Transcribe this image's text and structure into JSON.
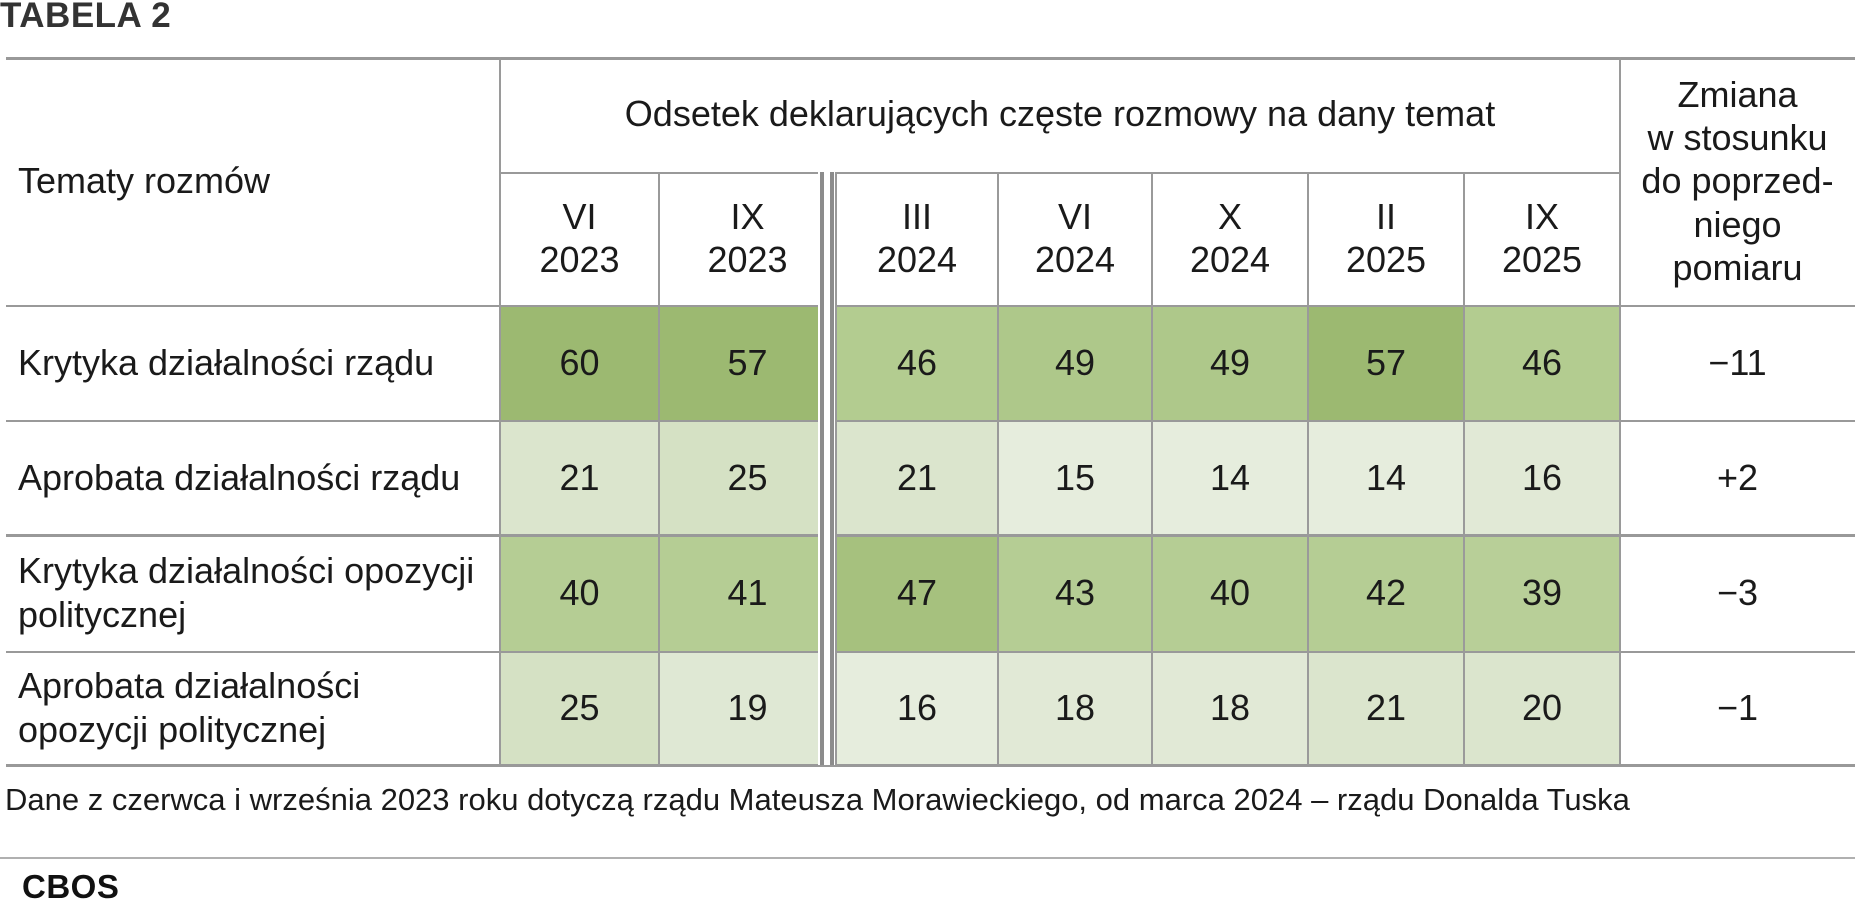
{
  "title": "TABELA 2",
  "table": {
    "row_header_label": "Tematy rozmów",
    "group_header": "Odsetek deklarujących częste rozmowy na dany temat",
    "change_header": "Zmiana w stosunku do poprzed- niego pomiaru",
    "change_header_lines": [
      "Zmiana",
      "w stosunku",
      "do poprzed-",
      "niego",
      "pomiaru"
    ],
    "columns": [
      {
        "month": "VI",
        "year": "2023"
      },
      {
        "month": "IX",
        "year": "2023"
      },
      {
        "month": "III",
        "year": "2024"
      },
      {
        "month": "VI",
        "year": "2024"
      },
      {
        "month": "X",
        "year": "2024"
      },
      {
        "month": "II",
        "year": "2025"
      },
      {
        "month": "IX",
        "year": "2025"
      }
    ],
    "rows": [
      {
        "label": "Krytyka działalności rządu",
        "values": [
          "60",
          "57",
          "46",
          "49",
          "49",
          "57",
          "46"
        ],
        "change": "−11"
      },
      {
        "label": "Aprobata działalności rządu",
        "values": [
          "21",
          "25",
          "21",
          "15",
          "14",
          "14",
          "16"
        ],
        "change": "+2"
      },
      {
        "label": "Krytyka działalności opozycji politycznej",
        "values": [
          "40",
          "41",
          "47",
          "43",
          "40",
          "42",
          "39"
        ],
        "change": "−3"
      },
      {
        "label": "Aprobata działalności opozycji politycznej",
        "values": [
          "25",
          "19",
          "16",
          "18",
          "18",
          "21",
          "20"
        ],
        "change": "−1"
      }
    ],
    "cell_colors": [
      [
        "#9cb971",
        "#9cb971",
        "#b3cc90",
        "#aec88a",
        "#aec88a",
        "#9cb971",
        "#b3cc90"
      ],
      [
        "#dbe5cd",
        "#d5e1c4",
        "#dbe5cd",
        "#e6eddd",
        "#e6eddd",
        "#e6eddd",
        "#e1e9d6"
      ],
      [
        "#b5cd94",
        "#b5cd94",
        "#a6c17e",
        "#b5cd94",
        "#b5cd94",
        "#b5cd94",
        "#b8cf98"
      ],
      [
        "#d5e1c4",
        "#dfe8d4",
        "#e6eddd",
        "#e1e9d6",
        "#e1e9d6",
        "#dbe5cd",
        "#dbe5cd"
      ]
    ]
  },
  "note": "Dane z czerwca i września 2023 roku dotyczą rządu Mateusza Morawieckiego, od marca 2024 – rządu Donalda Tuska",
  "brand": "CBOS"
}
